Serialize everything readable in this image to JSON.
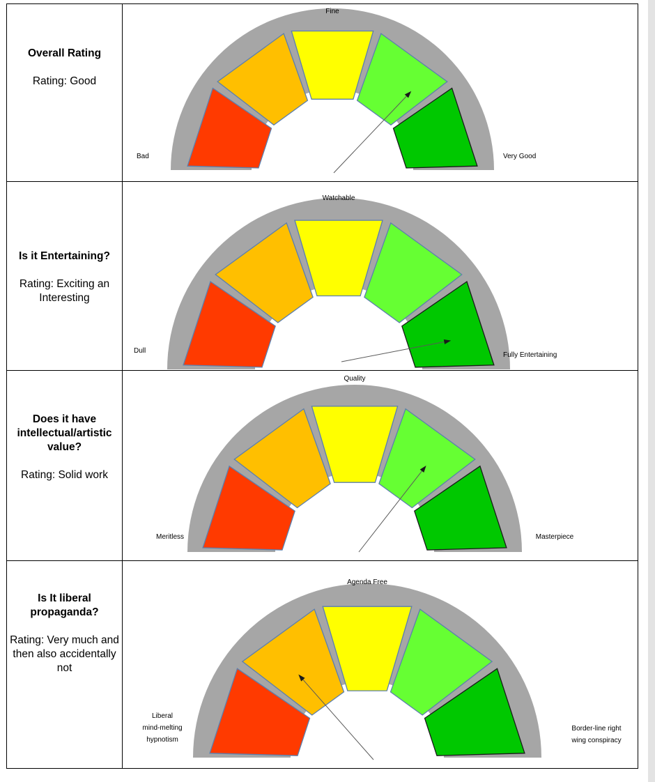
{
  "colors": {
    "bad": "#ff3a00",
    "poor": "#ffbf00",
    "fine": "#ffff00",
    "good": "#66ff33",
    "very_good": "#00c800",
    "backdrop": "#a6a6a6",
    "segment_edge": "#5b7fae",
    "needle": "#595959"
  },
  "rows": [
    {
      "question": "Overall Rating",
      "rating": "Rating: Good",
      "gauge": {
        "left_label": [
          "Bad"
        ],
        "top_label": "Fine",
        "right_label": [
          "Very Good"
        ],
        "rating_level": 0.75
      }
    },
    {
      "question": "Is it Entertaining?",
      "rating": "Rating: Exciting an Interesting",
      "gauge": {
        "left_label": [
          "Dull"
        ],
        "top_label": "Watchable",
        "right_label": [
          "Fully Entertaining"
        ],
        "rating_level": 0.92
      }
    },
    {
      "question": "Does it have intellectual/artistic value?",
      "rating": "Rating: Solid work",
      "gauge": {
        "left_label": [
          "Meritless"
        ],
        "top_label": "Quality",
        "right_label": [
          "Masterpiece"
        ],
        "rating_level": 0.72
      }
    },
    {
      "question": "Is It liberal propaganda?",
      "rating": "Rating: Very much and then also accidentally not",
      "gauge": {
        "left_label": [
          "Liberal",
          "mind-melting",
          "hypnotism"
        ],
        "top_label": "Agenda Free",
        "right_label": [
          "Border-line right",
          "wing conspiracy"
        ],
        "rating_level": 0.28
      }
    }
  ]
}
